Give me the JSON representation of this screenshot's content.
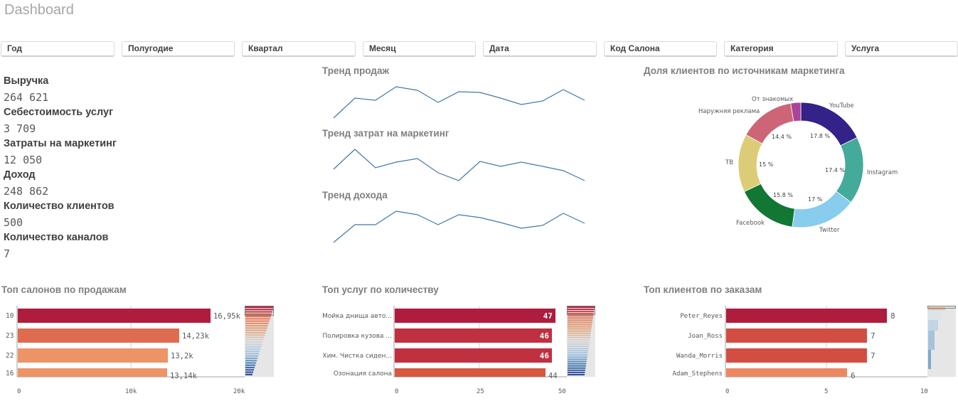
{
  "header": {
    "title": "Dashboard"
  },
  "filters": [
    {
      "label": "Год"
    },
    {
      "label": "Полугодие"
    },
    {
      "label": "Квартал"
    },
    {
      "label": "Месяц"
    },
    {
      "label": "Дата"
    },
    {
      "label": "Код Салона"
    },
    {
      "label": "Категория"
    },
    {
      "label": "Услуга"
    }
  ],
  "kpis": [
    {
      "label": "Выручка",
      "value": "264 621"
    },
    {
      "label": "Себестоимость услуг",
      "value": "3 709"
    },
    {
      "label": "Затраты на маркетинг",
      "value": "12 050"
    },
    {
      "label": "Доход",
      "value": "248 862"
    },
    {
      "label": "Количество клиентов",
      "value": "500"
    },
    {
      "label": "Количество каналов",
      "value": "7"
    }
  ],
  "trends": {
    "sales_title": "Тренд продаж",
    "marketing_title": "Тренд затрат на маркетинг",
    "income_title": "Тренд дохода",
    "line_color": "#4477aa"
  },
  "donut": {
    "title": "Доля клиентов по источникам маркетинга"
  },
  "bars": {
    "salons_title": "Топ салонов по продажам",
    "services_title": "Топ услуг по количеству",
    "clients_title": "Топ клиентов по заказам"
  },
  "chart_data": [
    {
      "type": "line",
      "title": "Тренд продаж",
      "x": [
        1,
        2,
        3,
        4,
        5,
        6,
        7,
        8,
        9,
        10,
        11,
        12,
        13
      ],
      "values": [
        0,
        28,
        25,
        44,
        39,
        22,
        37,
        36,
        28,
        19,
        24,
        40,
        25
      ],
      "note": "relative sparkline values (no axis shown)"
    },
    {
      "type": "line",
      "title": "Тренд затрат на маркетинг",
      "x": [
        1,
        2,
        3,
        4,
        5,
        6,
        7,
        8,
        9,
        10,
        11,
        12,
        13
      ],
      "values": [
        16,
        44,
        18,
        26,
        31,
        11,
        0,
        27,
        20,
        26,
        20,
        14,
        0
      ],
      "note": "relative sparkline values (no axis shown)"
    },
    {
      "type": "line",
      "title": "Тренд дохода",
      "x": [
        1,
        2,
        3,
        4,
        5,
        6,
        7,
        8,
        9,
        10,
        11,
        12,
        13
      ],
      "values": [
        0,
        25,
        25,
        44,
        39,
        25,
        39,
        35,
        28,
        20,
        24,
        41,
        27
      ],
      "note": "relative sparkline values (no axis shown)"
    },
    {
      "type": "pie",
      "title": "Доля клиентов по источникам маркетинга",
      "categories": [
        "YouTube",
        "Instagram",
        "Twitter",
        "Facebook",
        "TB",
        "Наружняя реклама",
        "От знакомых"
      ],
      "values": [
        17.8,
        17.4,
        17.0,
        15.8,
        15.0,
        14.4,
        2.6
      ],
      "labels": [
        "17.8 %",
        "17.4 %",
        "17 %",
        "15.8 %",
        "15 %",
        "14.4 %",
        ""
      ],
      "colors": [
        "#332288",
        "#44aa99",
        "#88ccee",
        "#117733",
        "#ddcc77",
        "#cc6677",
        "#aa4499"
      ]
    },
    {
      "type": "bar",
      "title": "Топ салонов по продажам",
      "orientation": "horizontal",
      "categories": [
        "10",
        "23",
        "22",
        "16"
      ],
      "values": [
        16950,
        14230,
        13200,
        13140
      ],
      "labels": [
        "16,95k",
        "14,23k",
        "13,2k",
        "13,14k"
      ],
      "colors": [
        "#ae1c3e",
        "#e06c50",
        "#ed9467",
        "#ed9467"
      ],
      "xticks": [
        "0",
        "10k",
        "20k"
      ],
      "xlim": [
        0,
        20000
      ]
    },
    {
      "type": "bar",
      "title": "Топ услуг по количеству",
      "orientation": "horizontal",
      "categories": [
        "Мойка днища авто...",
        "Полировка кузова ...",
        "Хим. Чистка сиден...",
        "Озонация салона"
      ],
      "values": [
        47,
        46,
        46,
        44
      ],
      "labels": [
        "47",
        "46",
        "46",
        "44"
      ],
      "colors": [
        "#ae1c3e",
        "#bf3040",
        "#bf3040",
        "#d6583f"
      ],
      "xticks": [
        "0",
        "25",
        "50"
      ],
      "xlim": [
        0,
        50
      ]
    },
    {
      "type": "bar",
      "title": "Топ клиентов по заказам",
      "orientation": "horizontal",
      "categories": [
        "Peter_Reyes",
        "Joan_Ross",
        "Wanda_Morris",
        "Adam_Stephens"
      ],
      "values": [
        8,
        7,
        7,
        6
      ],
      "labels": [
        "8",
        "7",
        "7",
        "6"
      ],
      "colors": [
        "#ae1c3e",
        "#d24e42",
        "#d24e42",
        "#eb8861"
      ],
      "xticks": [
        "0",
        "5",
        "10"
      ],
      "xlim": [
        0,
        10
      ]
    }
  ]
}
